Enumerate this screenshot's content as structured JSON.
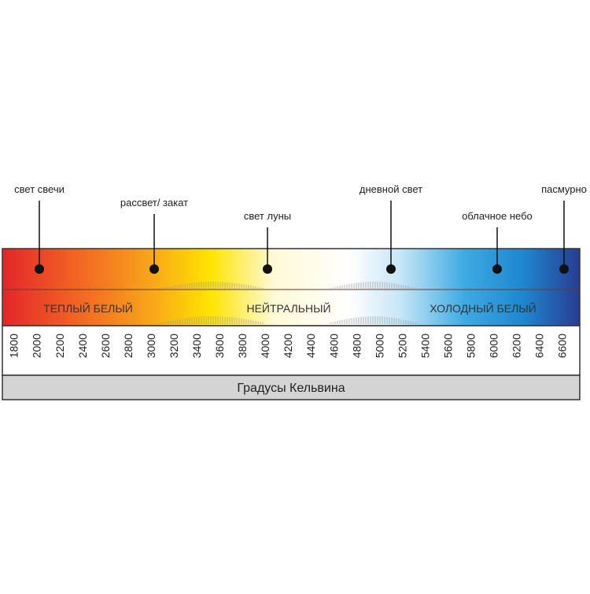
{
  "points": [
    {
      "label": "свет свечи"
    },
    {
      "label": "рассвет/ закат"
    },
    {
      "label": "свет луны"
    },
    {
      "label": "дневной свет"
    },
    {
      "label": "облачное небо"
    },
    {
      "label": "пасмурно"
    }
  ],
  "zones": [
    "ТЕПЛЫЙ БЕЛЫЙ",
    "НЕЙТРАЛЬНЫЙ",
    "ХОЛОДНЫЙ БЕЛЫЙ"
  ],
  "scale": {
    "ticks": [
      1800,
      2000,
      2200,
      2400,
      2600,
      2800,
      3000,
      3200,
      3400,
      3600,
      3800,
      4000,
      4200,
      4400,
      4600,
      4800,
      5000,
      5200,
      5400,
      5600,
      5800,
      6000,
      6200,
      6400,
      6600
    ],
    "title": "Градусы Кельвина"
  }
}
